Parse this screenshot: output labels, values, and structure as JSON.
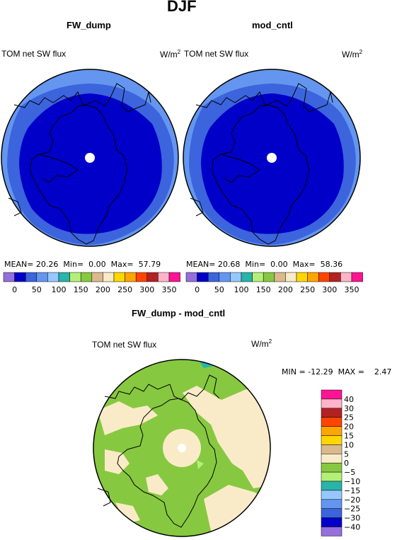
{
  "figure": {
    "season": "DJF",
    "diff_title": "FW_dump - mod_cntl"
  },
  "panels": [
    {
      "case": "FW_dump",
      "variable": "TOM net SW flux",
      "units": "W/m",
      "units_sup": "2",
      "stats": {
        "mean_label": "MEAN=",
        "mean": "20.26",
        "min_label": "Min=",
        "min": "0.00",
        "max_label": "Max=",
        "max": "57.79"
      }
    },
    {
      "case": "mod_cntl",
      "variable": "TOM net SW flux",
      "units": "W/m",
      "units_sup": "2",
      "stats": {
        "mean_label": "MEAN=",
        "mean": "20.68",
        "min_label": "Min=",
        "min": "0.00",
        "max_label": "Max=",
        "max": "58.36"
      }
    }
  ],
  "diff_panel": {
    "variable": "TOM net SW flux",
    "units": "W/m",
    "units_sup": "2",
    "stats": {
      "min_label": "MIN =",
      "min": "-12.29",
      "max_label": "MAX =",
      "max": "2.47"
    }
  },
  "chart_data": [
    {
      "type": "heatmap",
      "title": "FW_dump",
      "projection": "polar stereographic",
      "levels": [
        0,
        50,
        100,
        150,
        200,
        250,
        300,
        350
      ],
      "colors": [
        "#9370db",
        "#0000c8",
        "#3c64dc",
        "#6496f0",
        "#96c8ff",
        "#28b4aa",
        "#b4f078",
        "#87c841",
        "#dcb98c",
        "#faebc8",
        "#ffd700",
        "#ffa500",
        "#ff4500",
        "#b22222",
        "#ffb4c8",
        "#ff1493"
      ]
    },
    {
      "type": "heatmap",
      "title": "mod_cntl",
      "projection": "polar stereographic",
      "levels": [
        0,
        50,
        100,
        150,
        200,
        250,
        300,
        350
      ],
      "colors": [
        "#9370db",
        "#0000c8",
        "#3c64dc",
        "#6496f0",
        "#96c8ff",
        "#28b4aa",
        "#b4f078",
        "#87c841",
        "#dcb98c",
        "#faebc8",
        "#ffd700",
        "#ffa500",
        "#ff4500",
        "#b22222",
        "#ffb4c8",
        "#ff1493"
      ]
    },
    {
      "type": "heatmap",
      "title": "FW_dump - mod_cntl",
      "projection": "polar stereographic",
      "levels": [
        "40",
        "30",
        "25",
        "20",
        "15",
        "10",
        "5",
        "0",
        "−5",
        "−10",
        "−15",
        "−20",
        "−25",
        "−30",
        "−40"
      ],
      "colors": [
        "#ff1493",
        "#ffb4c8",
        "#b22222",
        "#ff4500",
        "#ffa500",
        "#ffd700",
        "#dcb98c",
        "#faebc8",
        "#87c841",
        "#b4f078",
        "#28b4aa",
        "#96c8ff",
        "#6496f0",
        "#3c64dc",
        "#0000c8",
        "#9370db"
      ]
    }
  ]
}
